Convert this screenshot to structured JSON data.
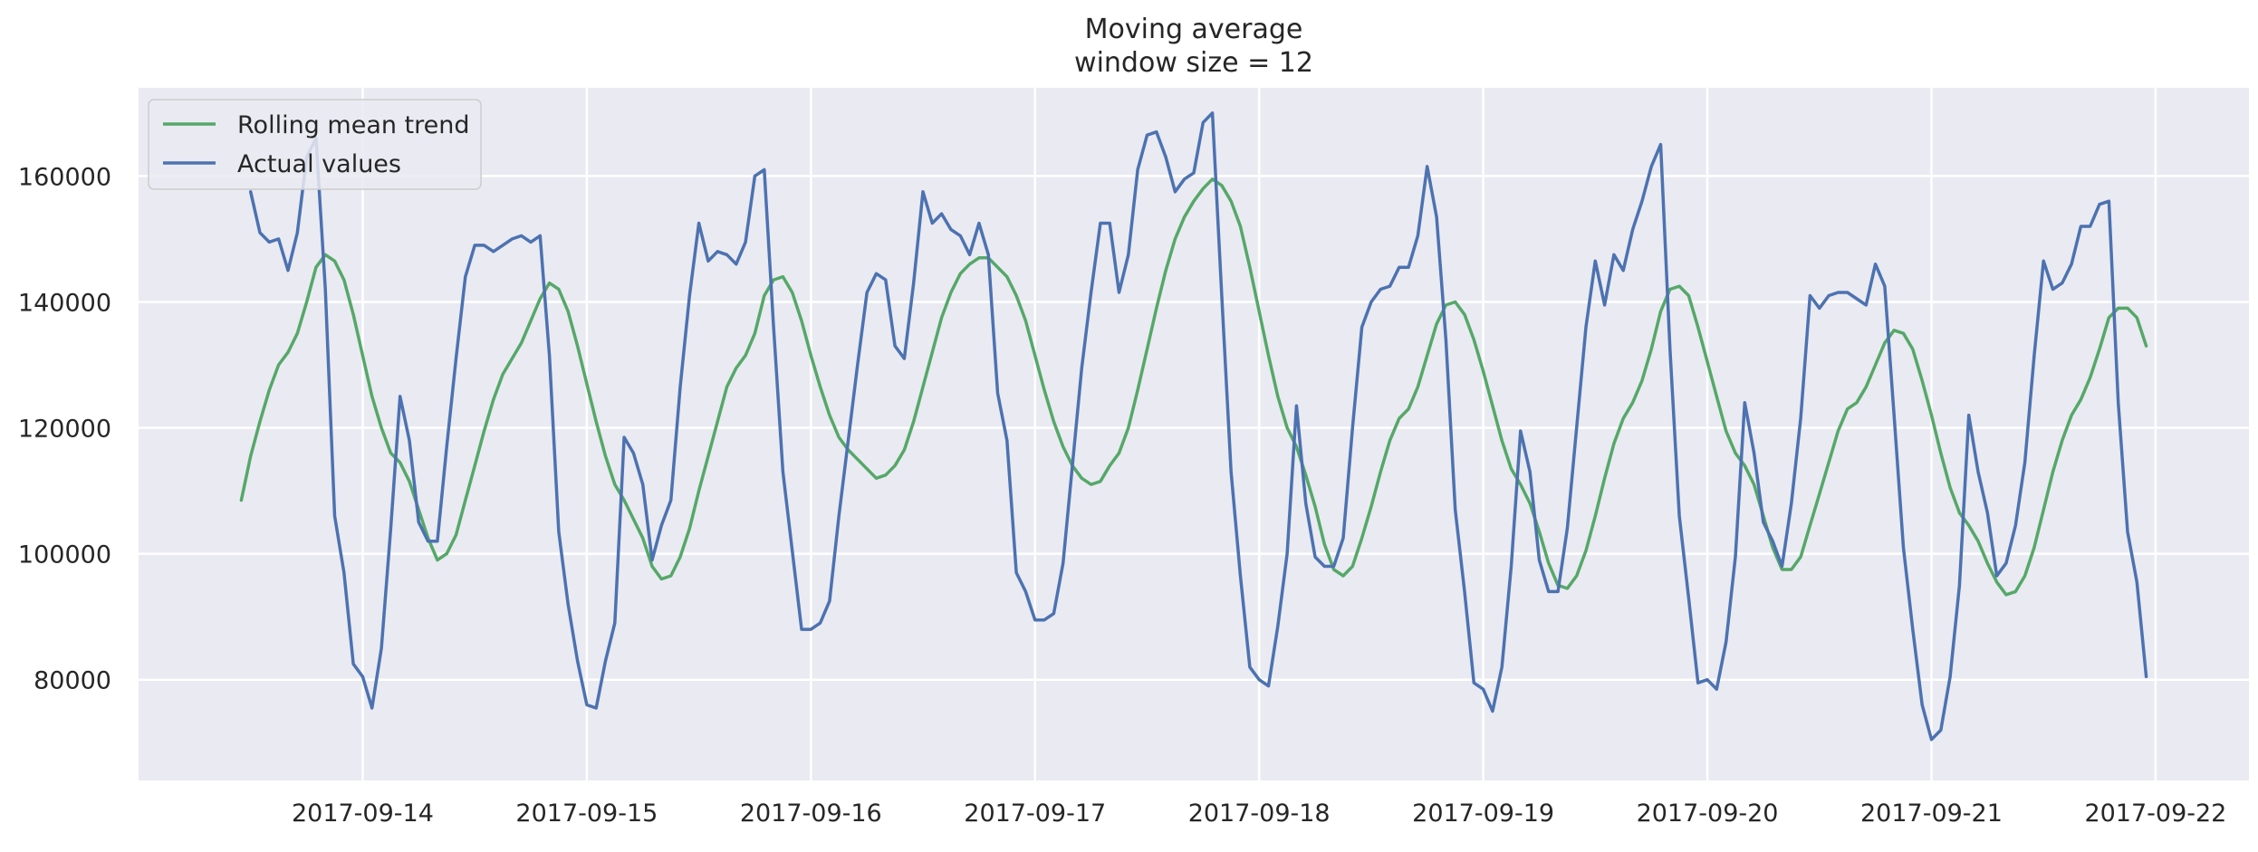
{
  "chart_data": {
    "type": "line",
    "title": "Moving average",
    "subtitle": "window size = 12",
    "xlabel": "",
    "ylabel": "",
    "ylim": [
      64000,
      174000
    ],
    "xlim": [
      "2017-09-13 00:00",
      "2017-09-22 10:00"
    ],
    "x_ticks": [
      "2017-09-14",
      "2017-09-15",
      "2017-09-16",
      "2017-09-17",
      "2017-09-18",
      "2017-09-19",
      "2017-09-20",
      "2017-09-21",
      "2017-09-22"
    ],
    "y_ticks": [
      80000,
      100000,
      120000,
      140000,
      160000
    ],
    "y_tick_labels": [
      "80000",
      "100000",
      "120000",
      "140000",
      "160000"
    ],
    "grid": true,
    "legend_position": "top-left",
    "x_start": "2017-09-13 11:00",
    "x_step": "1 hour",
    "series": [
      {
        "name": "Rolling mean trend",
        "color": "#55a868",
        "values": [
          108500,
          115500,
          121000,
          126000,
          130000,
          132000,
          135000,
          140000,
          145500,
          147500,
          146500,
          143500,
          138000,
          131500,
          125000,
          120000,
          116000,
          114500,
          111500,
          107000,
          102500,
          99000,
          100000,
          103000,
          108500,
          114000,
          119500,
          124500,
          128500,
          131000,
          133500,
          137000,
          140500,
          143000,
          142000,
          138500,
          133000,
          127000,
          121000,
          115500,
          111000,
          108500,
          105500,
          102500,
          98000,
          96000,
          96500,
          99500,
          104000,
          110000,
          115500,
          121000,
          126500,
          129500,
          131500,
          135000,
          141000,
          143500,
          144000,
          141500,
          137000,
          131500,
          126500,
          122000,
          118500,
          116500,
          115000,
          113500,
          112000,
          112500,
          114000,
          116500,
          121000,
          126500,
          132000,
          137500,
          141500,
          144500,
          146000,
          147000,
          147000,
          145500,
          144000,
          141000,
          137000,
          131500,
          126000,
          121000,
          117000,
          114000,
          112000,
          111000,
          111500,
          114000,
          116000,
          120000,
          126000,
          132500,
          139000,
          145000,
          150000,
          153500,
          156000,
          158000,
          159500,
          158500,
          156000,
          152000,
          145500,
          138500,
          131500,
          125000,
          120000,
          117000,
          112500,
          107500,
          101500,
          97500,
          96500,
          98000,
          102500,
          107500,
          113000,
          118000,
          121500,
          123000,
          126500,
          131500,
          136500,
          139500,
          140000,
          138000,
          134000,
          129000,
          123500,
          118000,
          113500,
          111000,
          108000,
          103500,
          98500,
          95000,
          94500,
          96500,
          100500,
          106000,
          112000,
          117500,
          121500,
          124000,
          127500,
          132500,
          138500,
          142000,
          142500,
          141000,
          136000,
          130500,
          125000,
          119500,
          116000,
          114000,
          111000,
          106000,
          101000,
          97500,
          97500,
          99500,
          104500,
          109500,
          114500,
          119500,
          123000,
          124000,
          126500,
          130000,
          133500,
          135500,
          135000,
          132500,
          127500,
          122000,
          116000,
          110500,
          106500,
          104500,
          102000,
          98500,
          95500,
          93500,
          94000,
          96500,
          101000,
          107000,
          113000,
          118000,
          122000,
          124500,
          128000,
          132500,
          137500,
          139000,
          139000,
          137500,
          133000
        ]
      },
      {
        "name": "Actual values",
        "color": "#4c72b0",
        "values": [
          null,
          157500,
          151000,
          149500,
          150000,
          145000,
          151000,
          163000,
          166000,
          142000,
          106000,
          97000,
          82500,
          80500,
          75500,
          85000,
          104000,
          125000,
          118000,
          105000,
          102000,
          102000,
          117000,
          131000,
          144000,
          149000,
          149000,
          148000,
          149000,
          150000,
          150500,
          149500,
          150500,
          131500,
          103500,
          92000,
          83000,
          76000,
          75500,
          83000,
          89000,
          118500,
          116000,
          111000,
          99000,
          104500,
          108500,
          126500,
          141000,
          152500,
          146500,
          148000,
          147500,
          146000,
          149500,
          160000,
          161000,
          136000,
          113000,
          100500,
          88000,
          88000,
          89000,
          92500,
          106000,
          118000,
          130000,
          141500,
          144500,
          143500,
          133000,
          131000,
          143000,
          157500,
          152500,
          154000,
          151500,
          150500,
          147500,
          152500,
          147500,
          125500,
          118000,
          97000,
          94000,
          89500,
          89500,
          90500,
          98500,
          114000,
          129500,
          141500,
          152500,
          152500,
          141500,
          147500,
          161000,
          166500,
          167000,
          163000,
          157500,
          159500,
          160500,
          168500,
          170000,
          141000,
          113000,
          96500,
          82000,
          80000,
          79000,
          88500,
          100000,
          123500,
          108000,
          99500,
          98000,
          98000,
          102500,
          120000,
          136000,
          140000,
          142000,
          142500,
          145500,
          145500,
          150500,
          161500,
          153500,
          134000,
          107000,
          94000,
          79500,
          78500,
          75000,
          82000,
          98000,
          119500,
          113000,
          99000,
          94000,
          94000,
          104000,
          120000,
          136000,
          146500,
          139500,
          147500,
          145000,
          151500,
          156000,
          161500,
          165000,
          132500,
          106000,
          93000,
          79500,
          80000,
          78500,
          86000,
          99500,
          124000,
          116000,
          105000,
          102000,
          98000,
          108000,
          121500,
          141000,
          139000,
          141000,
          141500,
          141500,
          140500,
          139500,
          146000,
          142500,
          122000,
          101000,
          88000,
          76000,
          70500,
          72000,
          80500,
          95000,
          122000,
          113000,
          106500,
          96500,
          98500,
          104500,
          114500,
          131500,
          146500,
          142000,
          143000,
          146000,
          152000,
          152000,
          155500,
          156000,
          124000,
          103500,
          95500,
          80500
        ]
      }
    ]
  }
}
